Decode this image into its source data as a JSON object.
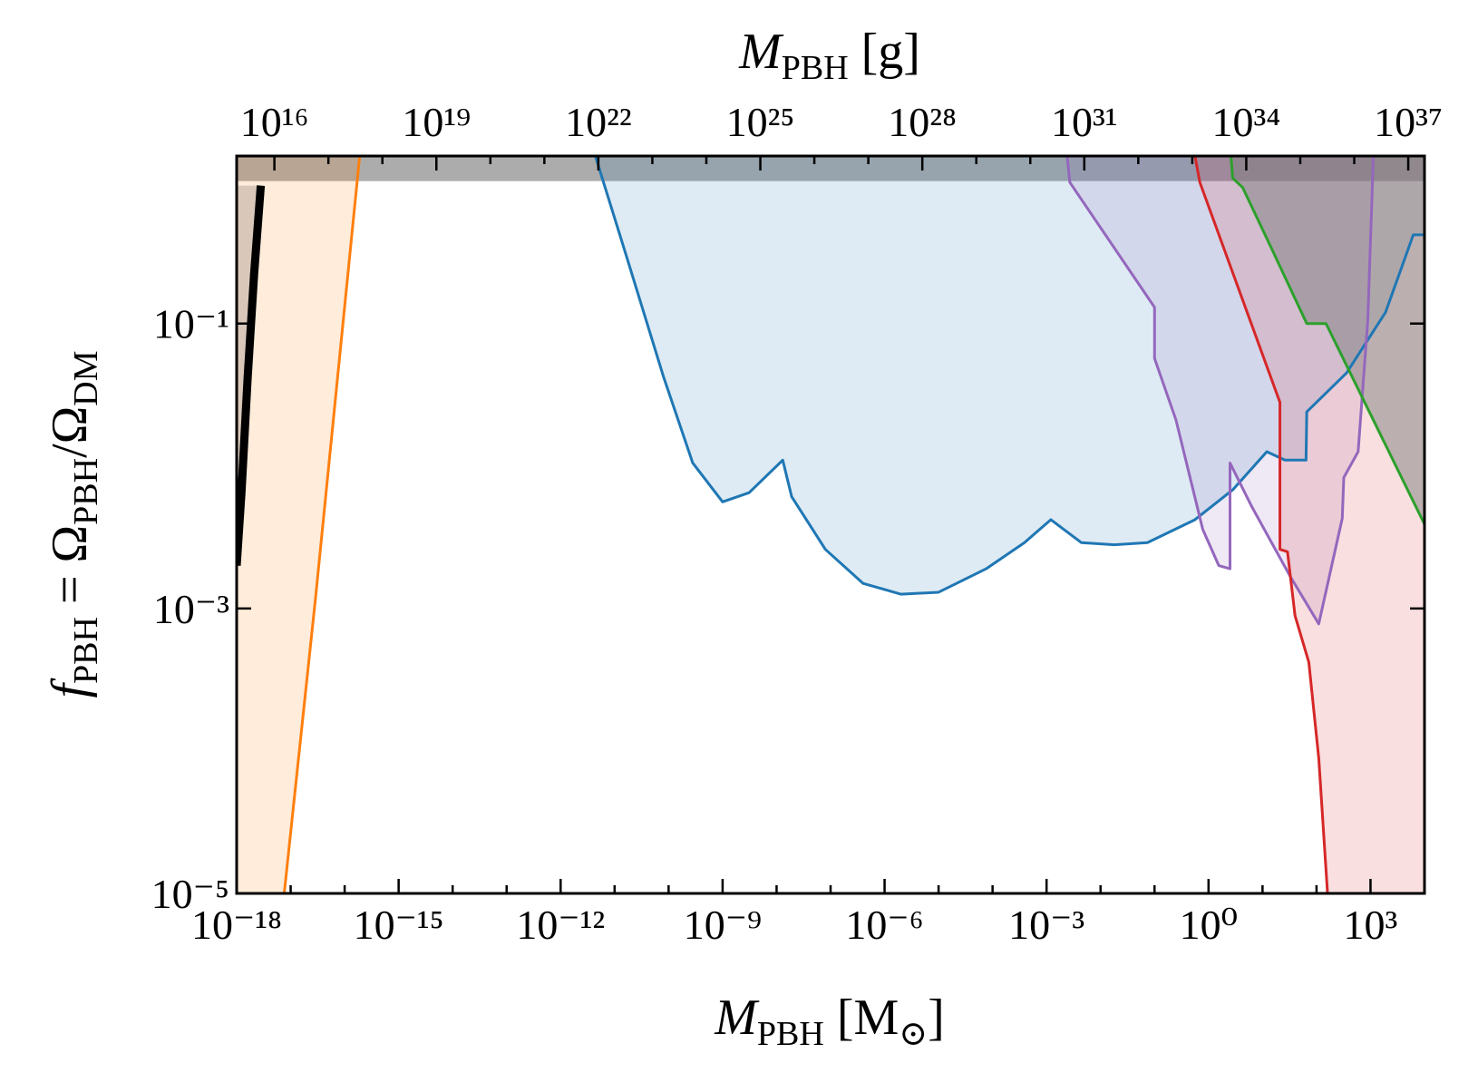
{
  "chart_data": {
    "type": "line",
    "x_label": [
      "M",
      "PBH",
      "[M",
      "⊙",
      "]"
    ],
    "x2_label": [
      "M",
      "PBH",
      "[g]"
    ],
    "y_label": [
      "f",
      "PBH",
      " = Ω",
      "PBH",
      "/Ω",
      "DM"
    ],
    "xscale": "log",
    "yscale": "log",
    "xlim": [
      1e-18,
      10000.0
    ],
    "xticks": [
      {
        "value": 1e-18,
        "label": "10⁻¹⁸"
      },
      {
        "value": 1e-15,
        "label": "10⁻¹⁵"
      },
      {
        "value": 1e-12,
        "label": "10⁻¹²"
      },
      {
        "value": 1e-09,
        "label": "10⁻⁹"
      },
      {
        "value": 1e-06,
        "label": "10⁻⁶"
      },
      {
        "value": 0.001,
        "label": "10⁻³"
      },
      {
        "value": 1,
        "label": "10⁰"
      },
      {
        "value": 1000,
        "label": "10³"
      }
    ],
    "xminorticks": [
      1e-17,
      1e-16,
      1e-14,
      1e-13,
      1e-11,
      1e-10,
      1e-08,
      1e-07,
      1e-05,
      0.0001,
      0.01,
      0.1,
      10,
      100,
      10000
    ],
    "x2lim": [
      2000000000000000.0,
      2e+37
    ],
    "x2ticks": [
      {
        "value": 1e+16,
        "label": "10¹⁶"
      },
      {
        "value": 1e+19,
        "label": "10¹⁹"
      },
      {
        "value": 1e+22,
        "label": "10²²"
      },
      {
        "value": 1e+25,
        "label": "10²⁵"
      },
      {
        "value": 1e+28,
        "label": "10²⁸"
      },
      {
        "value": 1e+31,
        "label": "10³¹"
      },
      {
        "value": 1e+34,
        "label": "10³⁴"
      },
      {
        "value": 1e+37,
        "label": "10³⁷"
      }
    ],
    "x2minorticks": [
      1e+17,
      1e+18,
      1e+20,
      1e+21,
      1e+23,
      1e+24,
      1e+26,
      1e+27,
      1e+29,
      1e+30,
      1e+32,
      1e+33,
      1e+35,
      1e+36
    ],
    "ylim": [
      1e-05,
      1.5
    ],
    "yticks": [
      {
        "value": 1e-05,
        "label": "10⁻⁵"
      },
      {
        "value": 0.001,
        "label": "10⁻³"
      },
      {
        "value": 0.1,
        "label": "10⁻¹"
      }
    ],
    "shaded_band": {
      "ymin": 1,
      "color": "#808080"
    },
    "series": [
      {
        "color": "#ff7f0e",
        "fill_color": "#ff7f0e",
        "fill": "left",
        "linewidth": 3,
        "x": [
          7.6e-18,
          2.9e-17,
          1.9e-16
        ],
        "values": [
          1e-05,
          0.0012,
          1.5
        ]
      },
      {
        "color": "#1f77b4",
        "fill_color": "#1f77b4",
        "fill": "above",
        "linewidth": 3,
        "x": [
          4.4e-12,
          1.6e-11,
          8.1e-11,
          2.8e-10,
          1e-09,
          3.1e-09,
          1.3e-08,
          1.9e-08,
          8e-08,
          4e-07,
          2e-06,
          1e-05,
          7.6e-05,
          0.00039,
          0.0012,
          0.0044,
          0.018,
          0.074,
          0.56,
          2.8,
          12,
          26,
          64,
          66,
          360,
          1900,
          6200,
          10000
        ],
        "values": [
          1.5,
          0.31,
          0.042,
          0.0105,
          0.0056,
          0.0065,
          0.011,
          0.0061,
          0.0026,
          0.0015,
          0.00126,
          0.0013,
          0.0019,
          0.0029,
          0.0042,
          0.0029,
          0.0028,
          0.0029,
          0.0042,
          0.0068,
          0.0126,
          0.011,
          0.011,
          0.024,
          0.045,
          0.12,
          0.42,
          0.42
        ]
      },
      {
        "color": "#9467bd",
        "fill_color": "#9467bd",
        "fill": "above",
        "linewidth": 3,
        "x": [
          0.0024,
          0.0027,
          0.1,
          0.1,
          0.25,
          0.78,
          1.55,
          2.5,
          2.5,
          6.3,
          32,
          110,
          300,
          320,
          590,
          890,
          1130
        ],
        "values": [
          1.5,
          0.98,
          0.13,
          0.057,
          0.021,
          0.0036,
          0.002,
          0.0019,
          0.0105,
          0.0052,
          0.0017,
          0.00078,
          0.0043,
          0.0083,
          0.0126,
          0.105,
          1.5
        ]
      },
      {
        "color": "#d62728",
        "fill_color": "#d62728",
        "fill": "right",
        "linewidth": 3,
        "x": [
          0.56,
          0.69,
          21,
          21,
          29,
          40,
          72,
          110,
          160
        ],
        "values": [
          1.5,
          0.98,
          0.028,
          0.0026,
          0.0025,
          0.00089,
          0.00042,
          8.9e-05,
          1e-05
        ]
      },
      {
        "color": "#2ca02c",
        "fill_color": "#7f7f7f",
        "fill": "above",
        "linewidth": 3,
        "x": [
          2.6,
          2.8,
          4.3,
          14,
          66,
          150,
          10000
        ],
        "values": [
          1.5,
          1.05,
          0.9,
          0.35,
          0.1,
          0.1,
          0.0039
        ]
      },
      {
        "color": "#000000",
        "fill_color": "#000000",
        "fill": "left",
        "linewidth": 9,
        "x": [
          1e-18,
          1.23e-18,
          1.6e-18,
          2.1e-18,
          2.8e-18
        ],
        "values": [
          0.002,
          0.0066,
          0.042,
          0.22,
          0.93
        ]
      }
    ]
  }
}
